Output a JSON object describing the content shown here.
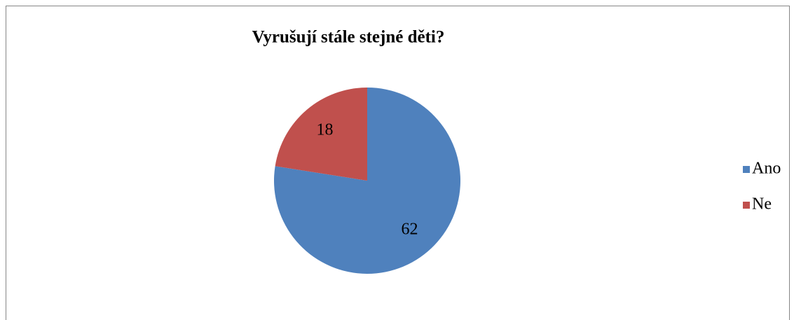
{
  "chart_data": {
    "type": "pie",
    "title": "Vyrušují stále stejné děti?",
    "categories": [
      "Ano",
      "Ne"
    ],
    "values": [
      62,
      18
    ],
    "colors": [
      "#4f81bd",
      "#c0504d"
    ],
    "legend": "right"
  }
}
